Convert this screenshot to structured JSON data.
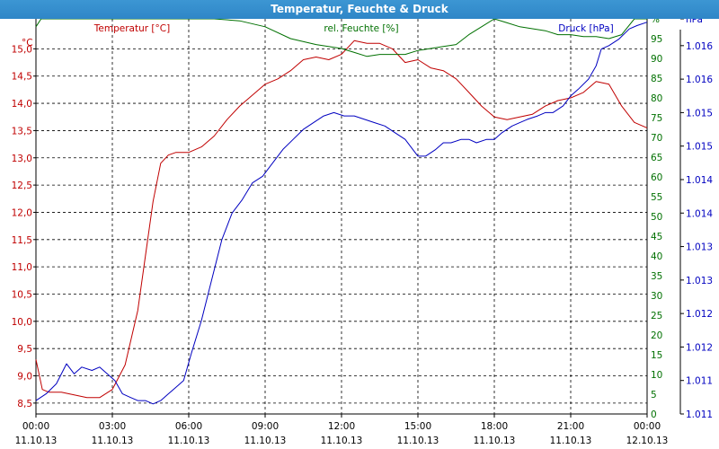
{
  "window": {
    "title": "Temperatur, Feuchte & Druck"
  },
  "chart_data": {
    "type": "line",
    "title": "Temperatur, Feuchte & Druck",
    "x_tick_labels": [
      {
        "time": "00:00",
        "date": "11.10.13"
      },
      {
        "time": "03:00",
        "date": "11.10.13"
      },
      {
        "time": "06:00",
        "date": "11.10.13"
      },
      {
        "time": "09:00",
        "date": "11.10.13"
      },
      {
        "time": "12:00",
        "date": "11.10.13"
      },
      {
        "time": "15:00",
        "date": "11.10.13"
      },
      {
        "time": "18:00",
        "date": "11.10.13"
      },
      {
        "time": "21:00",
        "date": "11.10.13"
      },
      {
        "time": "00:00",
        "date": "12.10.13"
      }
    ],
    "xlim_hours": [
      0,
      24
    ],
    "grid": true,
    "axes": {
      "temperature": {
        "unit": "°C",
        "color": "#c00000",
        "header": "Temperatur [°C]",
        "ylim": [
          8.3,
          15.55
        ],
        "tick_labels": [
          "8,5",
          "9,0",
          "9,5",
          "10,0",
          "10,5",
          "11,0",
          "11,5",
          "12,0",
          "12,5",
          "13,0",
          "13,5",
          "14,0",
          "14,5",
          "15,0"
        ],
        "tick_values": [
          8.5,
          9.0,
          9.5,
          10.0,
          10.5,
          11.0,
          11.5,
          12.0,
          12.5,
          13.0,
          13.5,
          14.0,
          14.5,
          15.0
        ]
      },
      "humidity": {
        "unit": "%",
        "color": "#007000",
        "header": "rel. Feuchte [%]",
        "ylim": [
          0,
          100
        ],
        "tick_labels": [
          "0",
          "5",
          "10",
          "15",
          "20",
          "25",
          "30",
          "35",
          "40",
          "45",
          "50",
          "55",
          "60",
          "65",
          "70",
          "75",
          "80",
          "85",
          "90",
          "95",
          "%"
        ],
        "tick_values": [
          0,
          5,
          10,
          15,
          20,
          25,
          30,
          35,
          40,
          45,
          50,
          55,
          60,
          65,
          70,
          75,
          80,
          85,
          90,
          95,
          100
        ]
      },
      "pressure": {
        "unit": "hPa",
        "color": "#0000c0",
        "header": "Druck [hPa]",
        "ylim": [
          1011.0,
          1016.9
        ],
        "tick_labels": [
          "1.011",
          "1.011",
          "1.012",
          "1.012",
          "1.013",
          "1.013",
          "1.014",
          "1.014",
          "1.015",
          "1.015",
          "1.016",
          "1.016",
          "hPa"
        ],
        "tick_values": [
          1011.0,
          1011.5,
          1012.0,
          1012.5,
          1013.0,
          1013.5,
          1014.0,
          1014.5,
          1015.0,
          1015.5,
          1016.0,
          1016.5,
          1016.9
        ]
      }
    },
    "series": [
      {
        "name": "Temperatur [°C]",
        "axis": "temperature",
        "color": "#c00000",
        "x": [
          0,
          0.25,
          0.5,
          1,
          1.5,
          2,
          2.5,
          3,
          3.5,
          4,
          4.3,
          4.6,
          4.9,
          5.2,
          5.5,
          6,
          6.5,
          7,
          7.5,
          8,
          8.5,
          9,
          9.5,
          10,
          10.5,
          11,
          11.5,
          12,
          12.5,
          13,
          13.5,
          14,
          14.5,
          15,
          15.5,
          16,
          16.5,
          17,
          17.5,
          18,
          18.5,
          19,
          19.5,
          20,
          20.5,
          21,
          21.5,
          22,
          22.5,
          23,
          23.5,
          24
        ],
        "values": [
          9.3,
          8.75,
          8.7,
          8.7,
          8.65,
          8.6,
          8.6,
          8.75,
          9.2,
          10.2,
          11.2,
          12.2,
          12.9,
          13.05,
          13.1,
          13.1,
          13.2,
          13.4,
          13.7,
          13.95,
          14.15,
          14.35,
          14.45,
          14.6,
          14.8,
          14.85,
          14.8,
          14.9,
          15.15,
          15.1,
          15.1,
          15.0,
          14.75,
          14.8,
          14.65,
          14.6,
          14.45,
          14.2,
          13.95,
          13.75,
          13.7,
          13.75,
          13.8,
          13.95,
          14.05,
          14.1,
          14.2,
          14.4,
          14.35,
          13.95,
          13.65,
          13.55
        ]
      },
      {
        "name": "rel. Feuchte [%]",
        "axis": "humidity",
        "color": "#007000",
        "x": [
          0,
          0.2,
          0.5,
          1,
          2,
          3,
          4,
          5,
          6,
          7,
          8,
          9,
          10,
          11,
          12,
          12.5,
          13,
          13.5,
          14,
          14.5,
          15,
          15.5,
          16,
          16.5,
          17,
          17.5,
          18,
          18.5,
          19,
          19.5,
          20,
          20.5,
          21,
          21.5,
          22,
          22.5,
          23,
          23.5,
          24
        ],
        "values": [
          98,
          100,
          100,
          100,
          100,
          100,
          100,
          100,
          100,
          100,
          99.5,
          98,
          95,
          93.5,
          92.5,
          91.5,
          90.5,
          91,
          91,
          91,
          92,
          92.5,
          93,
          93.5,
          96,
          98,
          100,
          99,
          98,
          97.5,
          97,
          96,
          96,
          95.5,
          95.5,
          95,
          96,
          100,
          100
        ]
      },
      {
        "name": "Druck [hPa]",
        "axis": "pressure",
        "color": "#0000c0",
        "x": [
          0,
          0.4,
          0.8,
          1.2,
          1.5,
          1.8,
          2.2,
          2.5,
          2.8,
          3.1,
          3.4,
          3.7,
          4,
          4.3,
          4.6,
          4.9,
          5.2,
          5.5,
          5.8,
          6.1,
          6.5,
          6.9,
          7.3,
          7.7,
          8.1,
          8.5,
          8.9,
          9.3,
          9.7,
          10.1,
          10.5,
          10.9,
          11.3,
          11.7,
          12.1,
          12.5,
          12.9,
          13.3,
          13.7,
          14.1,
          14.5,
          14.8,
          15,
          15.3,
          15.7,
          16,
          16.3,
          16.7,
          17,
          17.3,
          17.7,
          18,
          18.3,
          18.7,
          19,
          19.3,
          19.7,
          20,
          20.3,
          20.7,
          21,
          21.3,
          21.7,
          22,
          22.2,
          22.5,
          22.9,
          23.3,
          23.6,
          24
        ],
        "values": [
          1011.2,
          1011.3,
          1011.45,
          1011.75,
          1011.6,
          1011.7,
          1011.65,
          1011.7,
          1011.6,
          1011.5,
          1011.3,
          1011.25,
          1011.2,
          1011.2,
          1011.15,
          1011.2,
          1011.3,
          1011.4,
          1011.5,
          1011.9,
          1012.4,
          1013.0,
          1013.6,
          1014.0,
          1014.2,
          1014.45,
          1014.55,
          1014.75,
          1014.95,
          1015.1,
          1015.25,
          1015.35,
          1015.45,
          1015.5,
          1015.45,
          1015.45,
          1015.4,
          1015.35,
          1015.3,
          1015.2,
          1015.1,
          1014.95,
          1014.85,
          1014.85,
          1014.95,
          1015.05,
          1015.05,
          1015.1,
          1015.1,
          1015.05,
          1015.1,
          1015.1,
          1015.2,
          1015.3,
          1015.35,
          1015.4,
          1015.45,
          1015.5,
          1015.5,
          1015.6,
          1015.75,
          1015.85,
          1016.0,
          1016.2,
          1016.45,
          1016.5,
          1016.6,
          1016.75,
          1016.8,
          1016.85
        ]
      }
    ]
  }
}
